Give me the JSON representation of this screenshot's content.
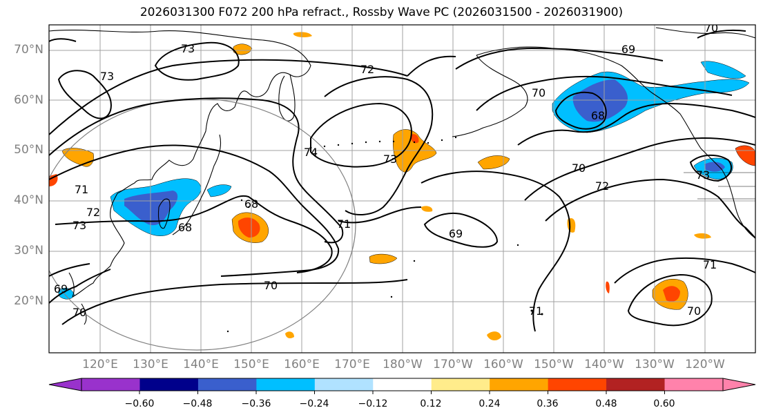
{
  "title": "2026031300 F072 200 hPa refract., Rossby Wave PC (2026031500 - 2026031900)",
  "lat_ticks": [
    "70°N",
    "60°N",
    "50°N",
    "40°N",
    "30°N",
    "20°N"
  ],
  "lon_ticks": [
    "120°E",
    "130°E",
    "140°E",
    "150°E",
    "160°E",
    "170°E",
    "180°W",
    "170°W",
    "160°W",
    "150°W",
    "140°W",
    "130°W",
    "120°W"
  ],
  "colorbar": {
    "colors": [
      "#9932cc",
      "#00008b",
      "#3a5fcd",
      "#00bfff",
      "#b0e2ff",
      "#ffffff",
      "#ffec8b",
      "#ffa500",
      "#ff4500",
      "#b22222",
      "#ff82ab"
    ],
    "tick_labels": [
      "−0.60",
      "−0.48",
      "−0.36",
      "−0.24",
      "−0.12",
      "0.12",
      "0.24",
      "0.36",
      "0.48",
      "0.60"
    ]
  },
  "contour_labels": [
    "73",
    "73",
    "72",
    "74",
    "73",
    "71",
    "68",
    "71",
    "72",
    "73",
    "70",
    "70",
    "69",
    "68",
    "69",
    "70",
    "72",
    "71",
    "71",
    "70",
    "69",
    "68",
    "70",
    "73",
    "70"
  ]
}
